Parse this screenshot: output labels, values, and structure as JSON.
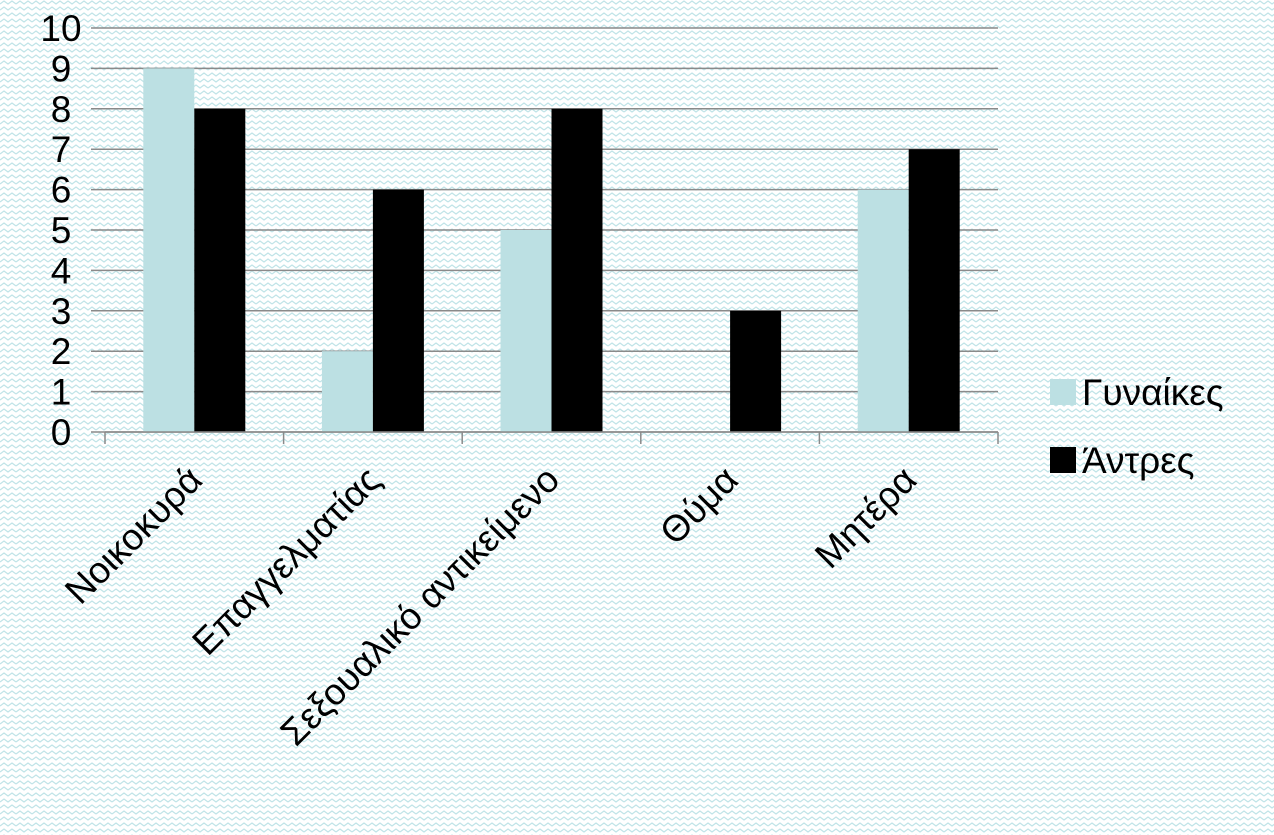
{
  "colors": {
    "background": "#ffffff",
    "pattern": "#bfe3e7",
    "grid": "#8a8a8a",
    "axis": "#8a8a8a"
  },
  "chart_data": {
    "type": "bar",
    "categories": [
      "Νοικοκυρά",
      "Επαγγελματίας",
      "Σεξουαλικό αντικείμενο",
      "Θύμα",
      "Μητέρα"
    ],
    "series": [
      {
        "name": "Γυναίκες",
        "color": "#bce0e3",
        "values": [
          9,
          2,
          5,
          0,
          6
        ]
      },
      {
        "name": "Άντρες",
        "color": "#000000",
        "values": [
          8,
          6,
          8,
          3,
          7
        ]
      }
    ],
    "y_ticks": [
      "0",
      "1",
      "2",
      "3",
      "4",
      "5",
      "6",
      "7",
      "8",
      "9",
      "10"
    ],
    "ylim": [
      0,
      10
    ],
    "grid": true,
    "legend_position": "right"
  }
}
